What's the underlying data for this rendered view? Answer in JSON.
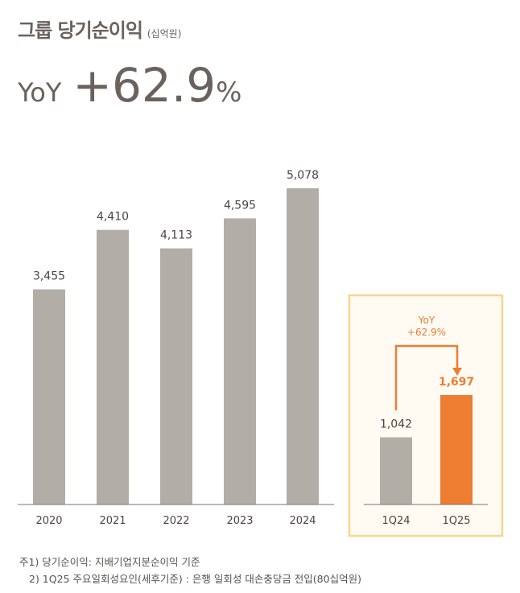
{
  "header": {
    "title": "그룹 당기순이익",
    "unit": "(십억원)",
    "yoy_label": "YoY",
    "yoy_value": "+62.9",
    "yoy_pct": "%"
  },
  "chart_data": [
    {
      "type": "bar",
      "categories": [
        "2020",
        "2021",
        "2022",
        "2023",
        "2024"
      ],
      "values": [
        3455,
        4410,
        4113,
        4595,
        5078
      ],
      "data_labels": [
        "3,455",
        "4,410",
        "4,113",
        "4,595",
        "5,078"
      ],
      "color": "#b3ada7"
    },
    {
      "type": "bar",
      "categories": [
        "1Q24",
        "1Q25"
      ],
      "values": [
        1042,
        1697
      ],
      "data_labels": [
        "1,042",
        "1,697"
      ],
      "colors": [
        "#b3ada7",
        "#ed7d31"
      ],
      "annotation": {
        "line1": "YoY",
        "line2": "+62.9%"
      },
      "panel_border": "#f5d78e",
      "panel_bg": "#fffbf3"
    }
  ],
  "notes": [
    "주1) 당기순이익: 지배기업지분순이익 기준",
    "2) 1Q25 주요일회성요인(세후기준) : 은행 일회성 대손충당금 전입(80십억원)"
  ]
}
